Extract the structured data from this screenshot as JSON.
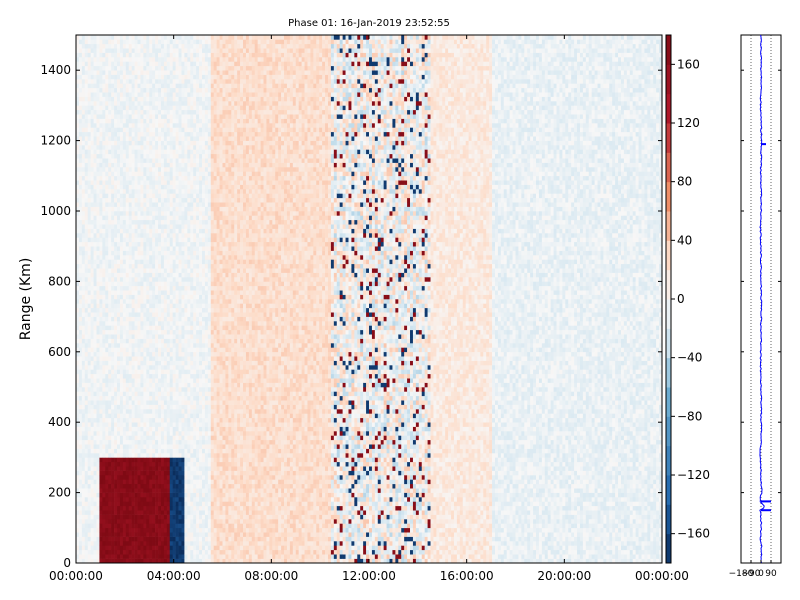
{
  "chart_data": [
    {
      "type": "heatmap",
      "title": "Phase 01: 16-Jan-2019 23:52:55",
      "ylabel": "Range (Km)",
      "xlabel": "",
      "x_ticks": [
        "00:00:00",
        "04:00:00",
        "08:00:00",
        "12:00:00",
        "16:00:00",
        "20:00:00",
        "00:00:00"
      ],
      "xlim_hours": [
        0,
        24
      ],
      "y_ticks": [
        0,
        200,
        400,
        600,
        800,
        1000,
        1200,
        1400
      ],
      "ylim": [
        0,
        1500
      ],
      "colorbar": {
        "ticks": [
          -160,
          -120,
          -80,
          -40,
          0,
          40,
          80,
          120,
          160
        ],
        "tick_labels": [
          "−160",
          "−120",
          "−80",
          "−40",
          "0",
          "40",
          "80",
          "120",
          "160"
        ],
        "range": [
          -180,
          180
        ],
        "colormap": "RdBu_r",
        "low_color": "#0b2d5c",
        "mid_color": "#f7f7f7",
        "high_color": "#7f0a14"
      },
      "regions": [
        {
          "desc": "strong positive phase block",
          "hours": [
            0.9,
            4.2
          ],
          "range_km": [
            0,
            300
          ],
          "value": 170
        },
        {
          "desc": "strong negative phase stripe",
          "hours": [
            3.9,
            4.5
          ],
          "range_km": [
            0,
            300
          ],
          "value": -170
        },
        {
          "desc": "weak positive background",
          "hours": [
            5.5,
            10.5
          ],
          "range_km": [
            0,
            1500
          ],
          "value": 25
        },
        {
          "desc": "noisy mixed band",
          "hours": [
            10.5,
            14.5
          ],
          "range_km": [
            0,
            1500
          ],
          "value": 0
        },
        {
          "desc": "weak positive background",
          "hours": [
            14.5,
            17.0
          ],
          "range_km": [
            0,
            1500
          ],
          "value": 15
        },
        {
          "desc": "weak negative background",
          "hours": [
            17.0,
            24.0
          ],
          "range_km": [
            0,
            1500
          ],
          "value": -10
        }
      ]
    },
    {
      "type": "line",
      "title": "",
      "xlim": [
        -180,
        180
      ],
      "x_ticks": [
        -180,
        -90,
        0,
        90
      ],
      "x_tick_labels": [
        "−180",
        "−90",
        "0",
        "90"
      ],
      "ylim": [
        0,
        1500
      ],
      "series": [
        {
          "color": "#0000ff",
          "range_km": [
            0,
            50,
            60,
            100,
            150,
            160,
            175,
            200,
            250,
            300,
            400,
            500,
            600,
            700,
            800,
            900,
            960,
            1000,
            1050,
            1100,
            1200,
            1300,
            1400,
            1500
          ],
          "values": [
            0,
            5,
            -8,
            3,
            -5,
            40,
            -10,
            5,
            0,
            -5,
            3,
            0,
            -3,
            2,
            0,
            -2,
            -5,
            0,
            3,
            -2,
            4,
            -3,
            2,
            0
          ]
        }
      ],
      "features": [
        {
          "desc": "horizontal spikes",
          "range_km": [
            150,
            175,
            1190
          ],
          "to_value": [
            90,
            90,
            45
          ]
        }
      ]
    }
  ]
}
